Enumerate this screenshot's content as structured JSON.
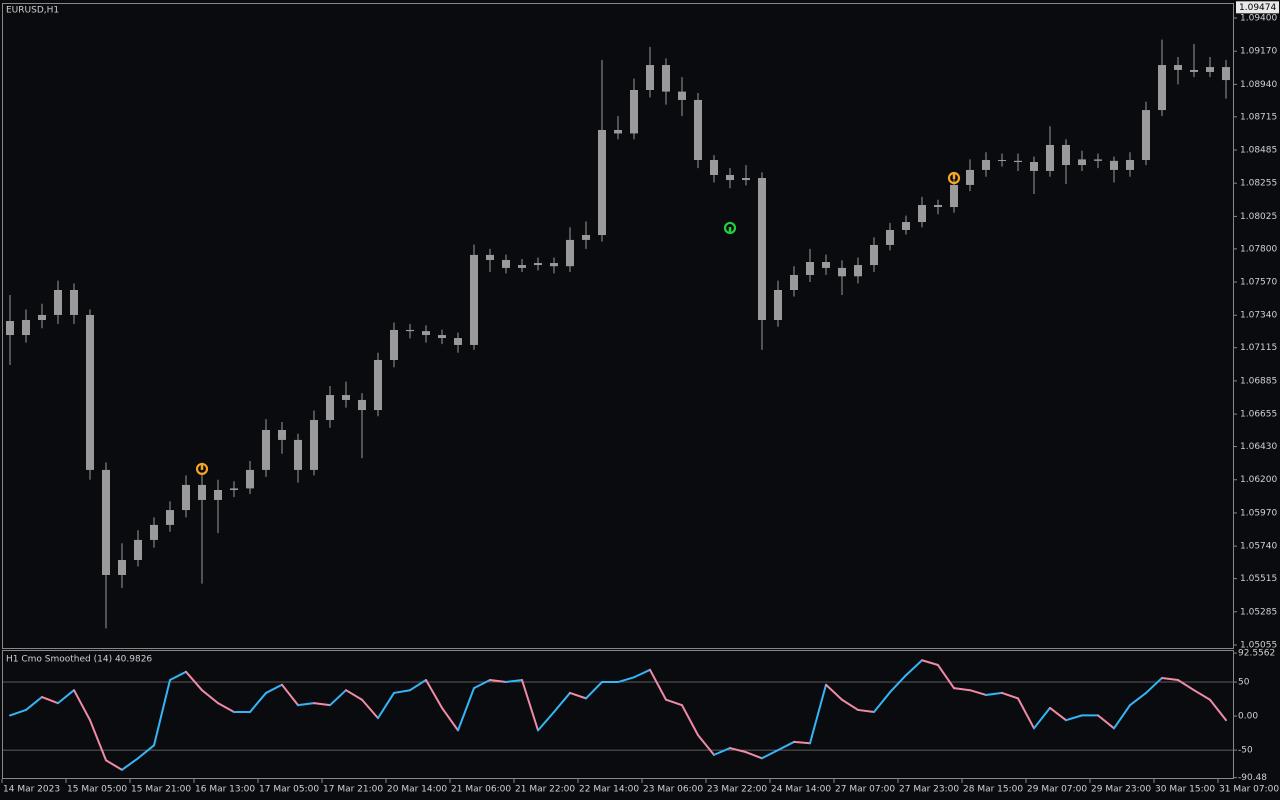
{
  "chart_data": [
    {
      "type": "candlestick",
      "title": "EURUSD,H1",
      "color": "#9a9a9a",
      "x": [
        "14 Mar 2023",
        null,
        null,
        null,
        "15 Mar 05:00",
        null,
        null,
        null,
        "15 Mar 21:00",
        null,
        null,
        null,
        "16 Mar 13:00",
        null,
        null,
        null,
        "17 Mar 05:00",
        null,
        null,
        null,
        "17 Mar 21:00",
        null,
        null,
        null,
        "20 Mar 14:00",
        null,
        null,
        null,
        "21 Mar 06:00",
        null,
        null,
        null,
        "21 Mar 22:00",
        null,
        null,
        null,
        "22 Mar 14:00",
        null,
        null,
        null,
        "23 Mar 06:00",
        null,
        null,
        null,
        "23 Mar 22:00",
        null,
        null,
        null,
        "24 Mar 14:00",
        null,
        null,
        null,
        "27 Mar 07:00",
        null,
        null,
        null,
        "27 Mar 23:00",
        null,
        null,
        null,
        "28 Mar 15:00",
        null,
        null,
        null,
        "29 Mar 07:00",
        null,
        null,
        null,
        "29 Mar 23:00",
        null,
        null,
        null,
        "30 Mar 15:00",
        null,
        null,
        null,
        "31 Mar 07:00"
      ],
      "ohlc": [
        [
          1.073,
          1.0748,
          1.06995,
          1.07203
        ],
        [
          1.07203,
          1.0738,
          1.0715,
          1.07307
        ],
        [
          1.07307,
          1.0742,
          1.0725,
          1.07342
        ],
        [
          1.07342,
          1.0758,
          1.0728,
          1.07515
        ],
        [
          1.07515,
          1.0756,
          1.0728,
          1.07342
        ],
        [
          1.07342,
          1.0738,
          1.062,
          1.06268
        ],
        [
          1.06268,
          1.0632,
          1.0517,
          1.0554
        ],
        [
          1.0554,
          1.0576,
          1.0545,
          1.05644
        ],
        [
          1.05644,
          1.0585,
          1.056,
          1.05783
        ],
        [
          1.05783,
          1.0594,
          1.0573,
          1.05887
        ],
        [
          1.05887,
          1.0605,
          1.0584,
          1.0599
        ],
        [
          1.0599,
          1.0623,
          1.0594,
          1.06164
        ],
        [
          1.06164,
          1.0625,
          1.0548,
          1.0606
        ],
        [
          1.0606,
          1.062,
          1.0583,
          1.06129
        ],
        [
          1.06129,
          1.0619,
          1.0608,
          1.0614
        ],
        [
          1.0614,
          1.0633,
          1.061,
          1.06268
        ],
        [
          1.06268,
          1.0662,
          1.0622,
          1.06545
        ],
        [
          1.06545,
          1.066,
          1.0638,
          1.06476
        ],
        [
          1.06476,
          1.0652,
          1.0618,
          1.06268
        ],
        [
          1.06268,
          1.0668,
          1.0623,
          1.06614
        ],
        [
          1.06614,
          1.0685,
          1.0656,
          1.06787
        ],
        [
          1.06787,
          1.0688,
          1.067,
          1.06753
        ],
        [
          1.06753,
          1.068,
          1.0635,
          1.06683
        ],
        [
          1.06683,
          1.0708,
          1.0664,
          1.0703
        ],
        [
          1.0703,
          1.0729,
          1.0698,
          1.07238
        ],
        [
          1.07238,
          1.0728,
          1.0718,
          1.0723
        ],
        [
          1.0723,
          1.0727,
          1.0715,
          1.07203
        ],
        [
          1.07203,
          1.0724,
          1.0714,
          1.07182
        ],
        [
          1.07182,
          1.0722,
          1.0708,
          1.07134
        ],
        [
          1.07134,
          1.0783,
          1.071,
          1.07758
        ],
        [
          1.07758,
          1.078,
          1.0764,
          1.07723
        ],
        [
          1.07723,
          1.0776,
          1.0763,
          1.07668
        ],
        [
          1.07668,
          1.0773,
          1.0764,
          1.07688
        ],
        [
          1.07688,
          1.0774,
          1.0765,
          1.07702
        ],
        [
          1.07702,
          1.0774,
          1.0763,
          1.0768
        ],
        [
          1.0768,
          1.0795,
          1.0764,
          1.07862
        ],
        [
          1.07862,
          1.0799,
          1.078,
          1.07896
        ],
        [
          1.07896,
          1.0911,
          1.0785,
          1.08624
        ],
        [
          1.08624,
          1.0872,
          1.0856,
          1.086
        ],
        [
          1.086,
          1.0898,
          1.0856,
          1.08901
        ],
        [
          1.08901,
          1.092,
          1.0885,
          1.09074
        ],
        [
          1.09074,
          1.0912,
          1.088,
          1.0889
        ],
        [
          1.0889,
          1.0899,
          1.0872,
          1.08832
        ],
        [
          1.08832,
          1.0888,
          1.0836,
          1.08416
        ],
        [
          1.08416,
          1.0845,
          1.0826,
          1.08312
        ],
        [
          1.08312,
          1.0836,
          1.0822,
          1.08277
        ],
        [
          1.08277,
          1.0838,
          1.0824,
          1.08291
        ],
        [
          1.08291,
          1.0833,
          1.071,
          1.07307
        ],
        [
          1.07307,
          1.0758,
          1.0726,
          1.07515
        ],
        [
          1.07515,
          1.0768,
          1.0747,
          1.07619
        ],
        [
          1.07619,
          1.078,
          1.0757,
          1.07709
        ],
        [
          1.07709,
          1.0776,
          1.0762,
          1.07668
        ],
        [
          1.07668,
          1.0772,
          1.0748,
          1.0761
        ],
        [
          1.0761,
          1.0774,
          1.0756,
          1.07688
        ],
        [
          1.07688,
          1.0788,
          1.0764,
          1.07827
        ],
        [
          1.07827,
          1.0798,
          1.0779,
          1.07931
        ],
        [
          1.07931,
          1.0803,
          1.079,
          1.07986
        ],
        [
          1.07986,
          1.0816,
          1.0795,
          1.08104
        ],
        [
          1.08104,
          1.0814,
          1.0804,
          1.0809
        ],
        [
          1.0809,
          1.0831,
          1.0805,
          1.08243
        ],
        [
          1.08243,
          1.0842,
          1.082,
          1.08347
        ],
        [
          1.08347,
          1.0847,
          1.083,
          1.08416
        ],
        [
          1.08416,
          1.0846,
          1.0837,
          1.0841
        ],
        [
          1.0841,
          1.0846,
          1.0834,
          1.08402
        ],
        [
          1.08402,
          1.0844,
          1.0818,
          1.0834
        ],
        [
          1.0834,
          1.0865,
          1.083,
          1.0852
        ],
        [
          1.0852,
          1.0856,
          1.0825,
          1.08381
        ],
        [
          1.08381,
          1.0848,
          1.0834,
          1.0842
        ],
        [
          1.0842,
          1.0846,
          1.0836,
          1.0841
        ],
        [
          1.0841,
          1.0844,
          1.0826,
          1.08347
        ],
        [
          1.08347,
          1.0847,
          1.083,
          1.08416
        ],
        [
          1.08416,
          1.0882,
          1.0838,
          1.08762
        ],
        [
          1.08762,
          1.0925,
          1.0872,
          1.09074
        ],
        [
          1.09074,
          1.0913,
          1.0894,
          1.0904
        ],
        [
          1.0904,
          1.0922,
          1.0899,
          1.09026
        ],
        [
          1.09026,
          1.0913,
          1.0899,
          1.0906
        ],
        [
          1.0906,
          1.0911,
          1.0884,
          1.0897
        ]
      ],
      "ylim": [
        1.05034,
        1.09497
      ],
      "yticks": [
        {
          "value": 1.094,
          "label": "1.09400"
        },
        {
          "value": 1.0917,
          "label": "1.09170"
        },
        {
          "value": 1.0894,
          "label": "1.08940"
        },
        1.08715,
        1.08485,
        1.08255,
        1.08025,
        {
          "value": 1.078,
          "label": "1.07800"
        },
        {
          "value": 1.0757,
          "label": "1.07570"
        },
        {
          "value": 1.0734,
          "label": "1.07340"
        },
        1.07115,
        1.06885,
        1.06655,
        {
          "value": 1.0643,
          "label": "1.06430"
        },
        {
          "value": 1.062,
          "label": "1.06200"
        },
        {
          "value": 1.0597,
          "label": "1.05970"
        },
        {
          "value": 1.0574,
          "label": "1.05740"
        },
        1.05515,
        1.05285,
        1.05055
      ],
      "current_price": 1.09474,
      "signals": [
        {
          "index": 12,
          "price": 1.06275,
          "direction": "down",
          "color": "#f5a623"
        },
        {
          "index": 45,
          "price": 1.07945,
          "direction": "up",
          "color": "#22d13a"
        },
        {
          "index": 59,
          "price": 1.08291,
          "direction": "down",
          "color": "#f5a623"
        }
      ]
    },
    {
      "type": "line",
      "title": "H1 Cmo Smoothed (14) 40.9826",
      "values": [
        1,
        9,
        28,
        19,
        38,
        -6,
        -65,
        -79,
        -62,
        -43,
        53,
        65,
        38,
        19,
        6,
        6,
        34,
        46,
        16,
        19,
        16,
        38,
        24,
        -3,
        34,
        38,
        53,
        12,
        -21,
        41,
        53,
        50,
        53,
        -21,
        6,
        34,
        26,
        50,
        50,
        57,
        68,
        24,
        16,
        -28,
        -57,
        -47,
        -53,
        -62,
        -50,
        -38,
        -40,
        46,
        24,
        9,
        6,
        35,
        60,
        82,
        75,
        41,
        38,
        31,
        34,
        26,
        -18,
        12,
        -6,
        1,
        1,
        -18,
        16,
        34,
        56,
        53,
        38,
        24,
        -6
      ],
      "colors": {
        "rising": "#35b5f5",
        "falling": "#f08aa5"
      },
      "ylim": [
        -91,
        95.6
      ],
      "yticks": [
        92.5562,
        50,
        {
          "value": 0,
          "label": "0.00"
        },
        -50,
        -90.48
      ],
      "levels": [
        50,
        -50
      ]
    }
  ]
}
